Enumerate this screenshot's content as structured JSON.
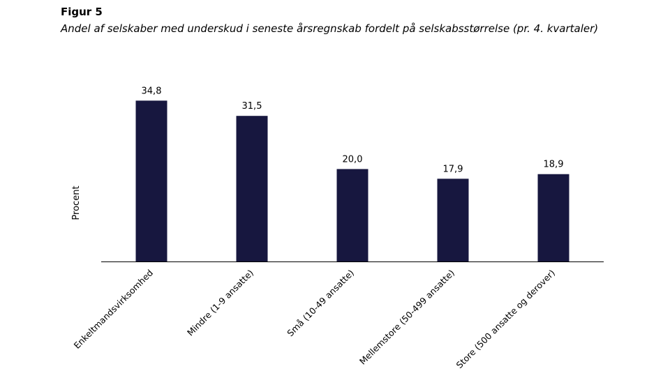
{
  "figure": {
    "heading": "Figur 5",
    "caption": "Andel af selskaber med underskud i seneste årsregnskab fordelt på selskabsstørrelse (pr. 4. kvartaler)"
  },
  "chart_data": {
    "type": "bar",
    "title": "",
    "xlabel": "",
    "ylabel": "Procent",
    "categories": [
      "Enkeltmandsvirksomhed",
      "Mindre (1-9 ansatte)",
      "Små (10-49 ansatte)",
      "Mellemstore (50-499 ansatte)",
      "Store (500 ansatte og derover)"
    ],
    "values": [
      34.8,
      31.5,
      20.0,
      17.9,
      18.9
    ],
    "value_labels": [
      "34,8",
      "31,5",
      "20,0",
      "17,9",
      "18,9"
    ],
    "ylim": [
      0,
      35
    ],
    "grid": false,
    "legend": "none",
    "bar_color": "#17173f"
  }
}
